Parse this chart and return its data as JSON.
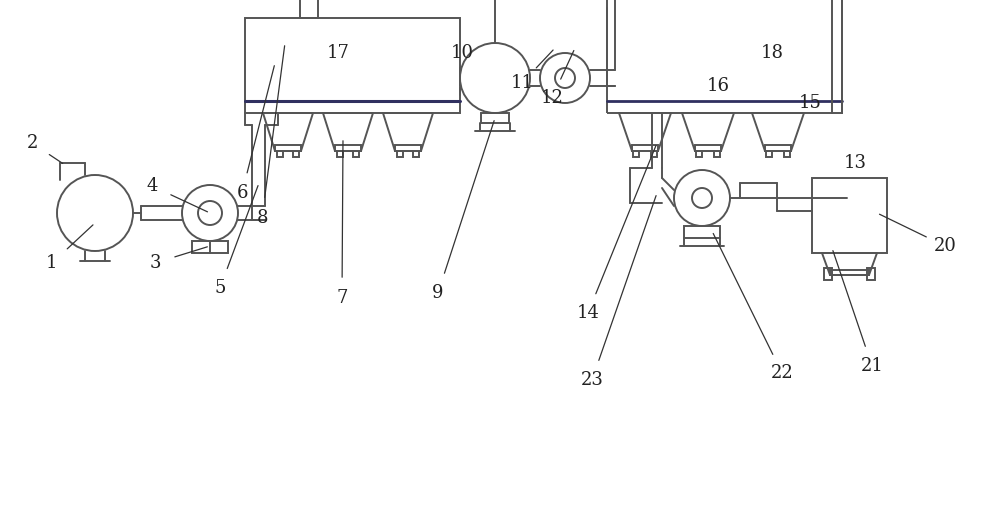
{
  "bg_color": "#ffffff",
  "lc": "#555555",
  "lw": 1.4,
  "figsize": [
    10.0,
    5.28
  ],
  "dpi": 100
}
